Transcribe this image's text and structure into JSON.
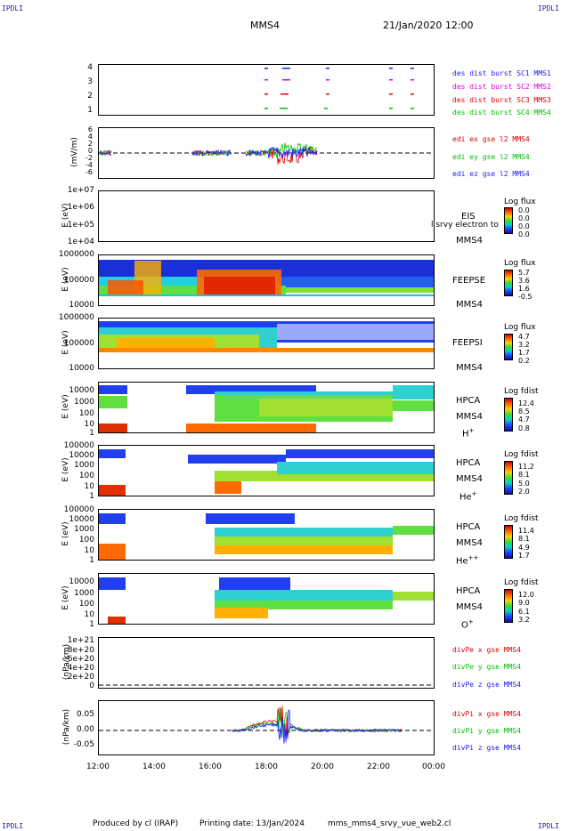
{
  "corners": {
    "tl": "IPDLI",
    "tr": "IPDLI",
    "bl": "IPDLI",
    "br": "IPDLI"
  },
  "header": {
    "spacecraft": "MMS4",
    "date": "21/Jan/2020 12:00"
  },
  "xaxis": {
    "ticks": [
      "12:00",
      "14:00",
      "16:00",
      "18:00",
      "20:00",
      "22:00",
      "00:00"
    ]
  },
  "footer": {
    "producer": "Produced by cl (IRAP)",
    "printing": "Printing date: 13/Jan/2024",
    "script": "mms_mms4_srvy_vue_web2.cl"
  },
  "chart_data": [
    {
      "id": "burst",
      "type": "scatter",
      "yticks": [
        "4",
        "3",
        "2",
        "1"
      ],
      "legend": [
        {
          "text": "des dist burst SC1 MMS1",
          "color": "#1a1aff"
        },
        {
          "text": "des dist burst SC2 MMS2",
          "color": "#e000e0"
        },
        {
          "text": "des dist burst SC3 MMS3",
          "color": "#e00000"
        },
        {
          "text": "des dist burst SC4 MMS4",
          "color": "#00c000"
        }
      ]
    },
    {
      "id": "efield",
      "type": "line",
      "ylabel": "(mV/m)",
      "yticks": [
        "6",
        "4",
        "2",
        "0",
        "-2",
        "-4",
        "-6"
      ],
      "legend": [
        {
          "text": "edi ex gse l2 MMS4",
          "color": "#e00000"
        },
        {
          "text": "edi ey gse l2 MMS4",
          "color": "#00c000"
        },
        {
          "text": "edi ez gse l2 MMS4",
          "color": "#1a1aff"
        }
      ]
    },
    {
      "id": "eis",
      "type": "heatmap",
      "ylabel": "E (eV)",
      "yticks": [
        "1e+07",
        "1e+06",
        "1e+05",
        "1e+04"
      ],
      "side": [
        "EIS",
        "MMS4"
      ],
      "overlay": "l srvy electron to",
      "cbar_title": "Log flux",
      "cbar_values": [
        "0.0",
        "0.0",
        "0.0",
        "0.0"
      ]
    },
    {
      "id": "feepse",
      "type": "heatmap",
      "ylabel": "E (eV)",
      "yticks": [
        "1000000",
        "100000",
        "10000"
      ],
      "side": [
        "FEEPSE",
        "MMS4"
      ],
      "cbar_title": "Log flux",
      "cbar_values": [
        "5.7",
        "3.6",
        "1.6",
        "-0.5"
      ]
    },
    {
      "id": "feepsi",
      "type": "heatmap",
      "ylabel": "E (eV)",
      "yticks": [
        "1000000",
        "100000",
        "10000"
      ],
      "side": [
        "FEEPSI",
        "MMS4"
      ],
      "cbar_title": "Log flux",
      "cbar_values": [
        "4.7",
        "3.2",
        "1.7",
        "0.2"
      ]
    },
    {
      "id": "hpca-h",
      "type": "heatmap",
      "ylabel": "E (eV)",
      "yticks": [
        "10000",
        "1000",
        "100",
        "10",
        "1"
      ],
      "side": [
        "HPCA",
        "MMS4"
      ],
      "species": "H",
      "species_sup": "+",
      "cbar_title": "Log fdist",
      "cbar_values": [
        "12.4",
        "8.5",
        "4.7",
        "0.8"
      ]
    },
    {
      "id": "hpca-he",
      "type": "heatmap",
      "ylabel": "E (eV)",
      "yticks": [
        "100000",
        "10000",
        "1000",
        "100",
        "10",
        "1"
      ],
      "side": [
        "HPCA",
        "MMS4"
      ],
      "species": "He",
      "species_sup": "+",
      "cbar_title": "Log fdist",
      "cbar_values": [
        "11.2",
        "8.1",
        "5.0",
        "2.0"
      ]
    },
    {
      "id": "hpca-hepp",
      "type": "heatmap",
      "ylabel": "E (eV)",
      "yticks": [
        "100000",
        "10000",
        "1000",
        "100",
        "10",
        "1"
      ],
      "side": [
        "HPCA",
        "MMS4"
      ],
      "species": "He",
      "species_sup": "++",
      "cbar_title": "Log fdist",
      "cbar_values": [
        "11.4",
        "8.1",
        "4.9",
        "1.7"
      ]
    },
    {
      "id": "hpca-o",
      "type": "heatmap",
      "ylabel": "E (eV)",
      "yticks": [
        "10000",
        "1000",
        "100",
        "10",
        "1"
      ],
      "side": [
        "HPCA",
        "MMS4"
      ],
      "species": "O",
      "species_sup": "+",
      "cbar_title": "Log fdist",
      "cbar_values": [
        "12.0",
        "9.0",
        "6.1",
        "3.2"
      ]
    },
    {
      "id": "divpe",
      "type": "line",
      "ylabel": "(nPa/km)",
      "yticks": [
        "1e+21",
        "8e+20",
        "6e+20",
        "4e+20",
        "2e+20",
        "0"
      ],
      "legend": [
        {
          "text": "divPe x gse MMS4",
          "color": "#e00000"
        },
        {
          "text": "divPe y gse MMS4",
          "color": "#00c000"
        },
        {
          "text": "divPe z gse MMS4",
          "color": "#1a1aff"
        }
      ]
    },
    {
      "id": "divpi",
      "type": "line",
      "ylabel": "(nPa/km)",
      "yticks": [
        "0.05",
        "0.00",
        "-0.05"
      ],
      "legend": [
        {
          "text": "divPi x gse MMS4",
          "color": "#e00000"
        },
        {
          "text": "divPi y gse MMS4",
          "color": "#00c000"
        },
        {
          "text": "divPi z gse MMS4",
          "color": "#1a1aff"
        }
      ]
    }
  ]
}
